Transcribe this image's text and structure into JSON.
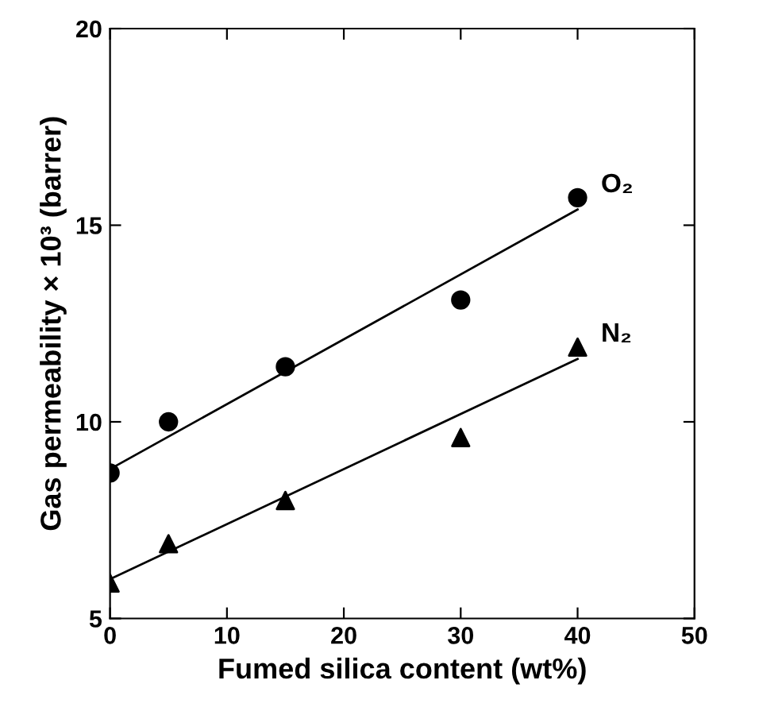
{
  "chart_data": {
    "type": "scatter",
    "xlabel": "Fumed silica content (wt%)",
    "ylabel": "Gas permeability × 10³ (barrer)",
    "xlim": [
      0,
      50
    ],
    "ylim": [
      5,
      20
    ],
    "xticks": [
      0,
      10,
      20,
      30,
      40,
      50
    ],
    "yticks": [
      5,
      10,
      15,
      20
    ],
    "grid": false,
    "legend": false,
    "series": [
      {
        "name": "O₂",
        "color": "#000000",
        "marker": "circle",
        "x": [
          0,
          5,
          15,
          30,
          40
        ],
        "values": [
          8.7,
          10.0,
          11.4,
          13.1,
          15.7
        ]
      },
      {
        "name": "N₂",
        "color": "#000000",
        "marker": "triangle",
        "x": [
          0,
          5,
          15,
          30,
          40
        ],
        "values": [
          5.9,
          6.9,
          8.0,
          9.6,
          11.9
        ]
      },
      {
        "type": "line",
        "color": "#000000",
        "marker": "none",
        "x": [
          0,
          40
        ],
        "values": [
          8.8,
          15.4
        ]
      },
      {
        "type": "line",
        "color": "#000000",
        "marker": "none",
        "x": [
          0,
          40
        ],
        "values": [
          6.0,
          11.6
        ]
      }
    ]
  }
}
